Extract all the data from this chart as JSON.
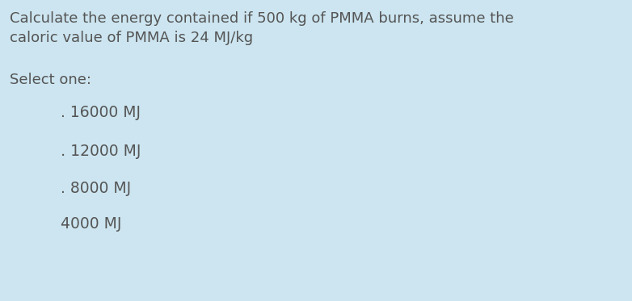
{
  "background_color": "#cce5f0",
  "question_line1": "Calculate the energy contained if 500 kg of PMMA burns, assume the",
  "question_line2": "caloric value of PMMA is 24 MJ/kg",
  "select_label": "Select one:",
  "options": [
    ". 16000 MJ",
    "․ 12000 MJ",
    ". 8000 MJ",
    "4000 MJ"
  ],
  "text_color": "#555555",
  "question_fontsize": 13.0,
  "option_fontsize": 13.5,
  "select_fontsize": 13.0,
  "fig_width": 7.82,
  "fig_height": 3.73,
  "dpi": 100
}
